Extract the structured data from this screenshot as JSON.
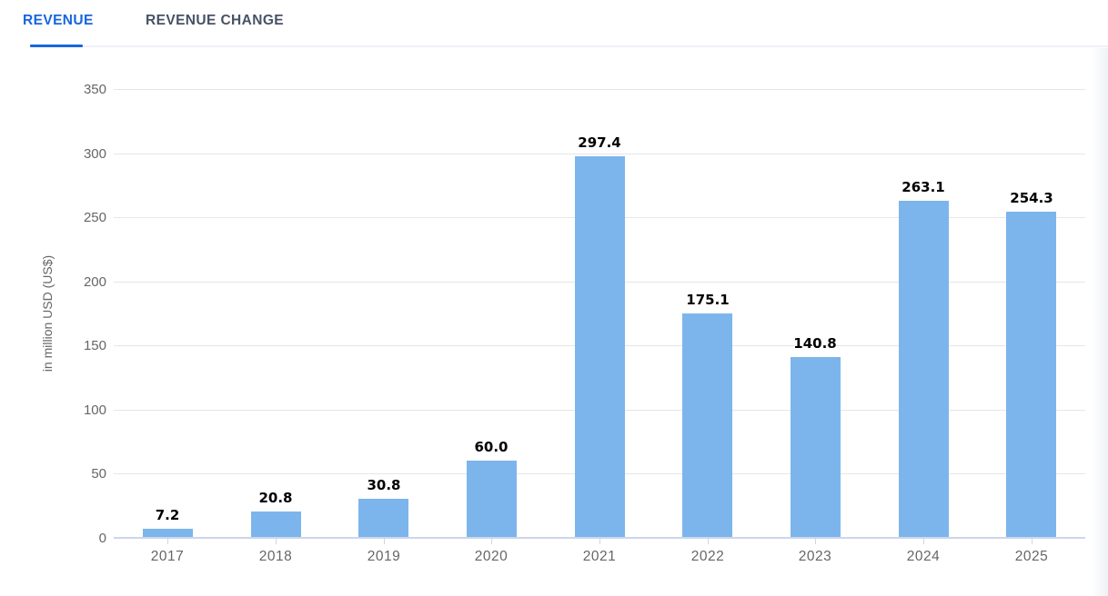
{
  "tabs": [
    {
      "label": "REVENUE",
      "active": true
    },
    {
      "label": "REVENUE CHANGE",
      "active": false
    }
  ],
  "colors": {
    "accent": "#1766e0",
    "inactive_tab": "#475266",
    "bar": "#7cb5ec",
    "grid": "#e6e6e6",
    "axis_line": "#ccd6eb",
    "axis_text": "#666666",
    "value_label_text": "#000000"
  },
  "chart_data": {
    "type": "bar",
    "categories": [
      "2017",
      "2018",
      "2019",
      "2020",
      "2021",
      "2022",
      "2023",
      "2024",
      "2025"
    ],
    "values": [
      7.2,
      20.8,
      30.8,
      60.0,
      297.4,
      175.1,
      140.8,
      263.1,
      254.3
    ],
    "value_labels": [
      "7.2",
      "20.8",
      "30.8",
      "60.0",
      "297.4",
      "175.1",
      "140.8",
      "263.1",
      "254.3"
    ],
    "title": "",
    "xlabel": "",
    "ylabel": "in million USD (US$)",
    "ylim": [
      0,
      350
    ],
    "yticks": [
      0,
      50,
      100,
      150,
      200,
      250,
      300,
      350
    ],
    "grid": true,
    "legend": false
  }
}
